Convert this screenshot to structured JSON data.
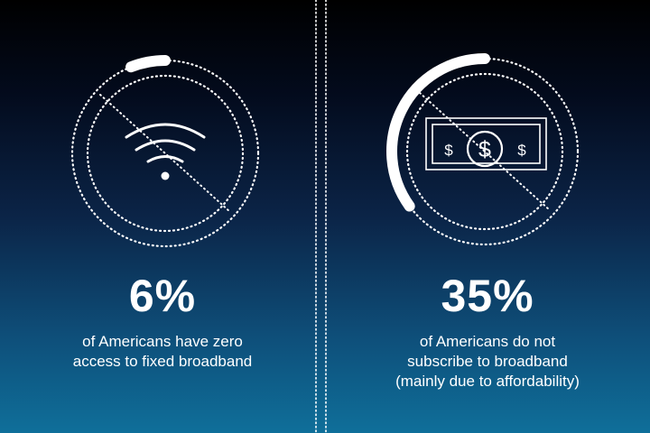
{
  "colors": {
    "background_top": "#000000",
    "background_bottom": "#0f6f9a",
    "foreground": "#ffffff"
  },
  "left": {
    "icon": "wifi-icon",
    "progress_fraction": 0.06,
    "stat": "6%",
    "caption_lines": [
      "of Americans have zero",
      "access to fixed broadband"
    ]
  },
  "right": {
    "icon": "dollar-bill-icon",
    "progress_fraction": 0.35,
    "stat": "35%",
    "caption_lines": [
      "of Americans do not",
      "subscribe to broadband",
      "(mainly due to affordability)"
    ]
  }
}
